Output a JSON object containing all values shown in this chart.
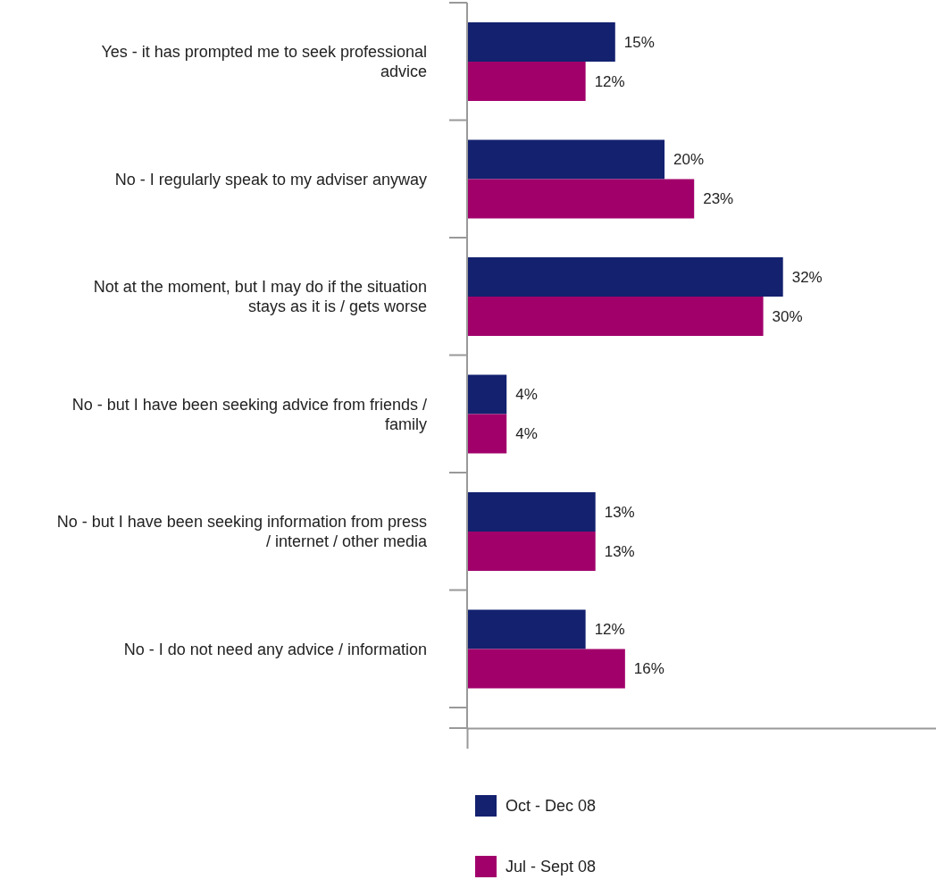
{
  "chart_data": {
    "type": "bar",
    "orientation": "horizontal",
    "categories": [
      "Yes - it has prompted me to seek professional advice",
      "No - I regularly speak to my adviser anyway",
      "Not at the moment, but I may do if the situation stays as it is / gets worse",
      "No - but I have been seeking advice from friends / family",
      "No - but I have been seeking information from press / internet / other media",
      "No - I do not need any advice / information"
    ],
    "series": [
      {
        "name": "Oct - Dec 08",
        "color": "#13216f",
        "values": [
          15,
          20,
          32,
          4,
          13,
          12
        ],
        "value_labels": [
          "15%",
          "20%",
          "32%",
          "4%",
          "13%",
          "12%"
        ]
      },
      {
        "name": "Jul - Sept 08",
        "color": "#a1006b",
        "values": [
          12,
          23,
          30,
          4,
          13,
          16
        ],
        "value_labels": [
          "12%",
          "23%",
          "30%",
          "4%",
          "13%",
          "16%"
        ]
      }
    ],
    "xlim": [
      0,
      47.5
    ],
    "xticks": [
      {
        "value": 0,
        "label": null
      }
    ],
    "tick_labels": "y",
    "legend": "bottom"
  }
}
